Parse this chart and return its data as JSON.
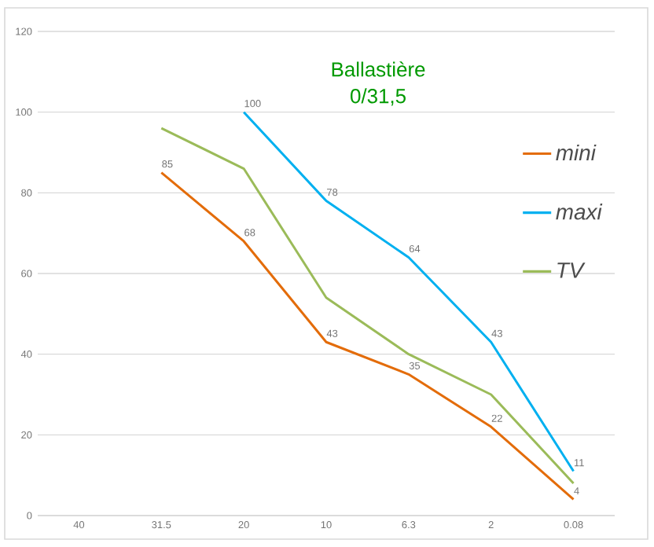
{
  "chart_data": {
    "type": "line",
    "title": "Ballastière 0/31,5",
    "categories": [
      "40",
      "31.5",
      "20",
      "10",
      "6.3",
      "2",
      "0.08"
    ],
    "series": [
      {
        "name": "mini",
        "color": "#e36c0a",
        "values": [
          null,
          85,
          68,
          43,
          35,
          22,
          4
        ],
        "value_labels": [
          null,
          "85",
          "68",
          "43",
          "35",
          "22",
          "4"
        ]
      },
      {
        "name": "maxi",
        "color": "#00b0f0",
        "values": [
          null,
          null,
          100,
          78,
          64,
          43,
          11
        ],
        "value_labels": [
          null,
          null,
          "100",
          "78",
          "64",
          "43",
          "11"
        ]
      },
      {
        "name": "TV",
        "color": "#9bbb59",
        "values": [
          null,
          96,
          86,
          54,
          40,
          30,
          8
        ]
      }
    ],
    "ylim": [
      0,
      120
    ],
    "yticks": [
      0,
      20,
      40,
      60,
      80,
      100,
      120
    ],
    "grid": "y",
    "legend": "right",
    "marker": "none",
    "line_style": "solid"
  }
}
